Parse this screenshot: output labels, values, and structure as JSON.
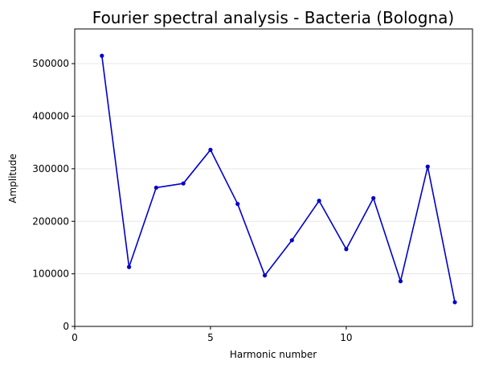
{
  "chart_data": {
    "type": "line",
    "title": "Fourier spectral analysis - Bacteria (Bologna)",
    "xlabel": "Harmonic number",
    "ylabel": "Amplitude",
    "xlim": [
      0,
      14.65
    ],
    "ylim": [
      0,
      566000
    ],
    "xticks": [
      0,
      5,
      10
    ],
    "yticks": [
      0,
      100000,
      200000,
      300000,
      400000,
      500000
    ],
    "grid": "horizontal",
    "series": [
      {
        "color": "#0000cc",
        "x": [
          1,
          2,
          3,
          4,
          5,
          6,
          7,
          8,
          9,
          10,
          11,
          12,
          13,
          14
        ],
        "values": [
          515000,
          113000,
          264000,
          272000,
          336000,
          233000,
          97000,
          164000,
          239000,
          147000,
          244000,
          86000,
          304000,
          46000
        ]
      }
    ]
  }
}
